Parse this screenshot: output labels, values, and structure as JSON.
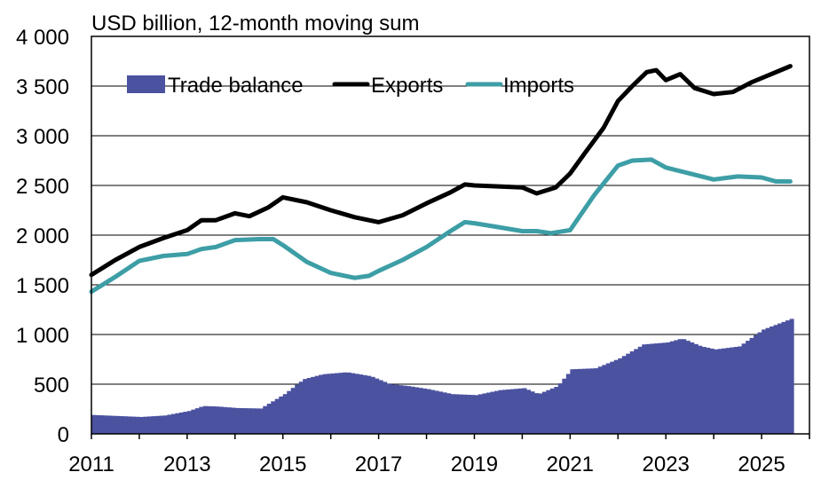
{
  "chart_data": {
    "type": "bar+line",
    "subtitle": "USD billion, 12-month moving sum",
    "xlim": [
      2011.0,
      2026.0
    ],
    "ylim": [
      0,
      4000
    ],
    "x_ticks": [
      2011,
      2013,
      2015,
      2017,
      2019,
      2021,
      2023,
      2025
    ],
    "x_tick_labels": [
      "2011",
      "2013",
      "2015",
      "2017",
      "2019",
      "2021",
      "2023",
      "2025"
    ],
    "y_ticks": [
      0,
      500,
      1000,
      1500,
      2000,
      2500,
      3000,
      3500,
      4000
    ],
    "y_tick_labels": [
      "0",
      "500",
      "1 000",
      "1 500",
      "2 000",
      "2 500",
      "3 000",
      "3 500",
      "4 000"
    ],
    "grid": "horizontal",
    "legend_position": "top-left",
    "colors": {
      "trade_balance": "#4b52a0",
      "exports": "#000000",
      "imports": "#3d9ea6"
    },
    "legend": [
      "Trade balance",
      "Exports",
      "Imports"
    ],
    "series": [
      {
        "name": "Trade balance",
        "type": "bar",
        "points": [
          [
            2011.0,
            190
          ],
          [
            2011.5,
            180
          ],
          [
            2012.0,
            170
          ],
          [
            2012.5,
            185
          ],
          [
            2013.0,
            230
          ],
          [
            2013.3,
            280
          ],
          [
            2013.6,
            275
          ],
          [
            2014.0,
            260
          ],
          [
            2014.5,
            255
          ],
          [
            2015.0,
            400
          ],
          [
            2015.4,
            550
          ],
          [
            2015.8,
            600
          ],
          [
            2016.3,
            620
          ],
          [
            2016.8,
            580
          ],
          [
            2017.2,
            500
          ],
          [
            2017.6,
            480
          ],
          [
            2018.0,
            450
          ],
          [
            2018.5,
            400
          ],
          [
            2019.0,
            390
          ],
          [
            2019.5,
            440
          ],
          [
            2020.0,
            460
          ],
          [
            2020.3,
            400
          ],
          [
            2020.7,
            480
          ],
          [
            2021.0,
            650
          ],
          [
            2021.5,
            660
          ],
          [
            2022.0,
            760
          ],
          [
            2022.5,
            900
          ],
          [
            2023.0,
            920
          ],
          [
            2023.3,
            960
          ],
          [
            2023.7,
            880
          ],
          [
            2024.0,
            850
          ],
          [
            2024.5,
            880
          ],
          [
            2025.0,
            1050
          ],
          [
            2025.6,
            1160
          ]
        ]
      },
      {
        "name": "Exports",
        "type": "line",
        "points": [
          [
            2011.0,
            1600
          ],
          [
            2011.5,
            1750
          ],
          [
            2012.0,
            1880
          ],
          [
            2012.5,
            1970
          ],
          [
            2013.0,
            2050
          ],
          [
            2013.3,
            2150
          ],
          [
            2013.6,
            2150
          ],
          [
            2014.0,
            2220
          ],
          [
            2014.3,
            2190
          ],
          [
            2014.7,
            2280
          ],
          [
            2015.0,
            2380
          ],
          [
            2015.5,
            2330
          ],
          [
            2016.0,
            2250
          ],
          [
            2016.5,
            2180
          ],
          [
            2017.0,
            2130
          ],
          [
            2017.5,
            2200
          ],
          [
            2018.0,
            2320
          ],
          [
            2018.5,
            2430
          ],
          [
            2018.8,
            2510
          ],
          [
            2019.0,
            2500
          ],
          [
            2019.5,
            2490
          ],
          [
            2020.0,
            2480
          ],
          [
            2020.3,
            2420
          ],
          [
            2020.7,
            2480
          ],
          [
            2021.0,
            2620
          ],
          [
            2021.3,
            2820
          ],
          [
            2021.7,
            3080
          ],
          [
            2022.0,
            3350
          ],
          [
            2022.3,
            3500
          ],
          [
            2022.6,
            3640
          ],
          [
            2022.8,
            3660
          ],
          [
            2023.0,
            3560
          ],
          [
            2023.3,
            3620
          ],
          [
            2023.6,
            3480
          ],
          [
            2024.0,
            3420
          ],
          [
            2024.4,
            3440
          ],
          [
            2024.8,
            3540
          ],
          [
            2025.2,
            3620
          ],
          [
            2025.6,
            3700
          ]
        ]
      },
      {
        "name": "Imports",
        "type": "line",
        "points": [
          [
            2011.0,
            1430
          ],
          [
            2011.5,
            1580
          ],
          [
            2012.0,
            1740
          ],
          [
            2012.5,
            1790
          ],
          [
            2013.0,
            1810
          ],
          [
            2013.3,
            1860
          ],
          [
            2013.6,
            1880
          ],
          [
            2014.0,
            1950
          ],
          [
            2014.5,
            1960
          ],
          [
            2014.8,
            1960
          ],
          [
            2015.0,
            1900
          ],
          [
            2015.5,
            1730
          ],
          [
            2016.0,
            1620
          ],
          [
            2016.5,
            1570
          ],
          [
            2016.8,
            1590
          ],
          [
            2017.0,
            1640
          ],
          [
            2017.5,
            1750
          ],
          [
            2018.0,
            1880
          ],
          [
            2018.5,
            2040
          ],
          [
            2018.8,
            2130
          ],
          [
            2019.0,
            2120
          ],
          [
            2019.5,
            2080
          ],
          [
            2020.0,
            2040
          ],
          [
            2020.3,
            2040
          ],
          [
            2020.6,
            2020
          ],
          [
            2021.0,
            2050
          ],
          [
            2021.5,
            2400
          ],
          [
            2022.0,
            2700
          ],
          [
            2022.3,
            2750
          ],
          [
            2022.7,
            2760
          ],
          [
            2023.0,
            2680
          ],
          [
            2023.5,
            2620
          ],
          [
            2024.0,
            2560
          ],
          [
            2024.5,
            2590
          ],
          [
            2025.0,
            2580
          ],
          [
            2025.3,
            2540
          ],
          [
            2025.6,
            2540
          ]
        ]
      }
    ]
  }
}
